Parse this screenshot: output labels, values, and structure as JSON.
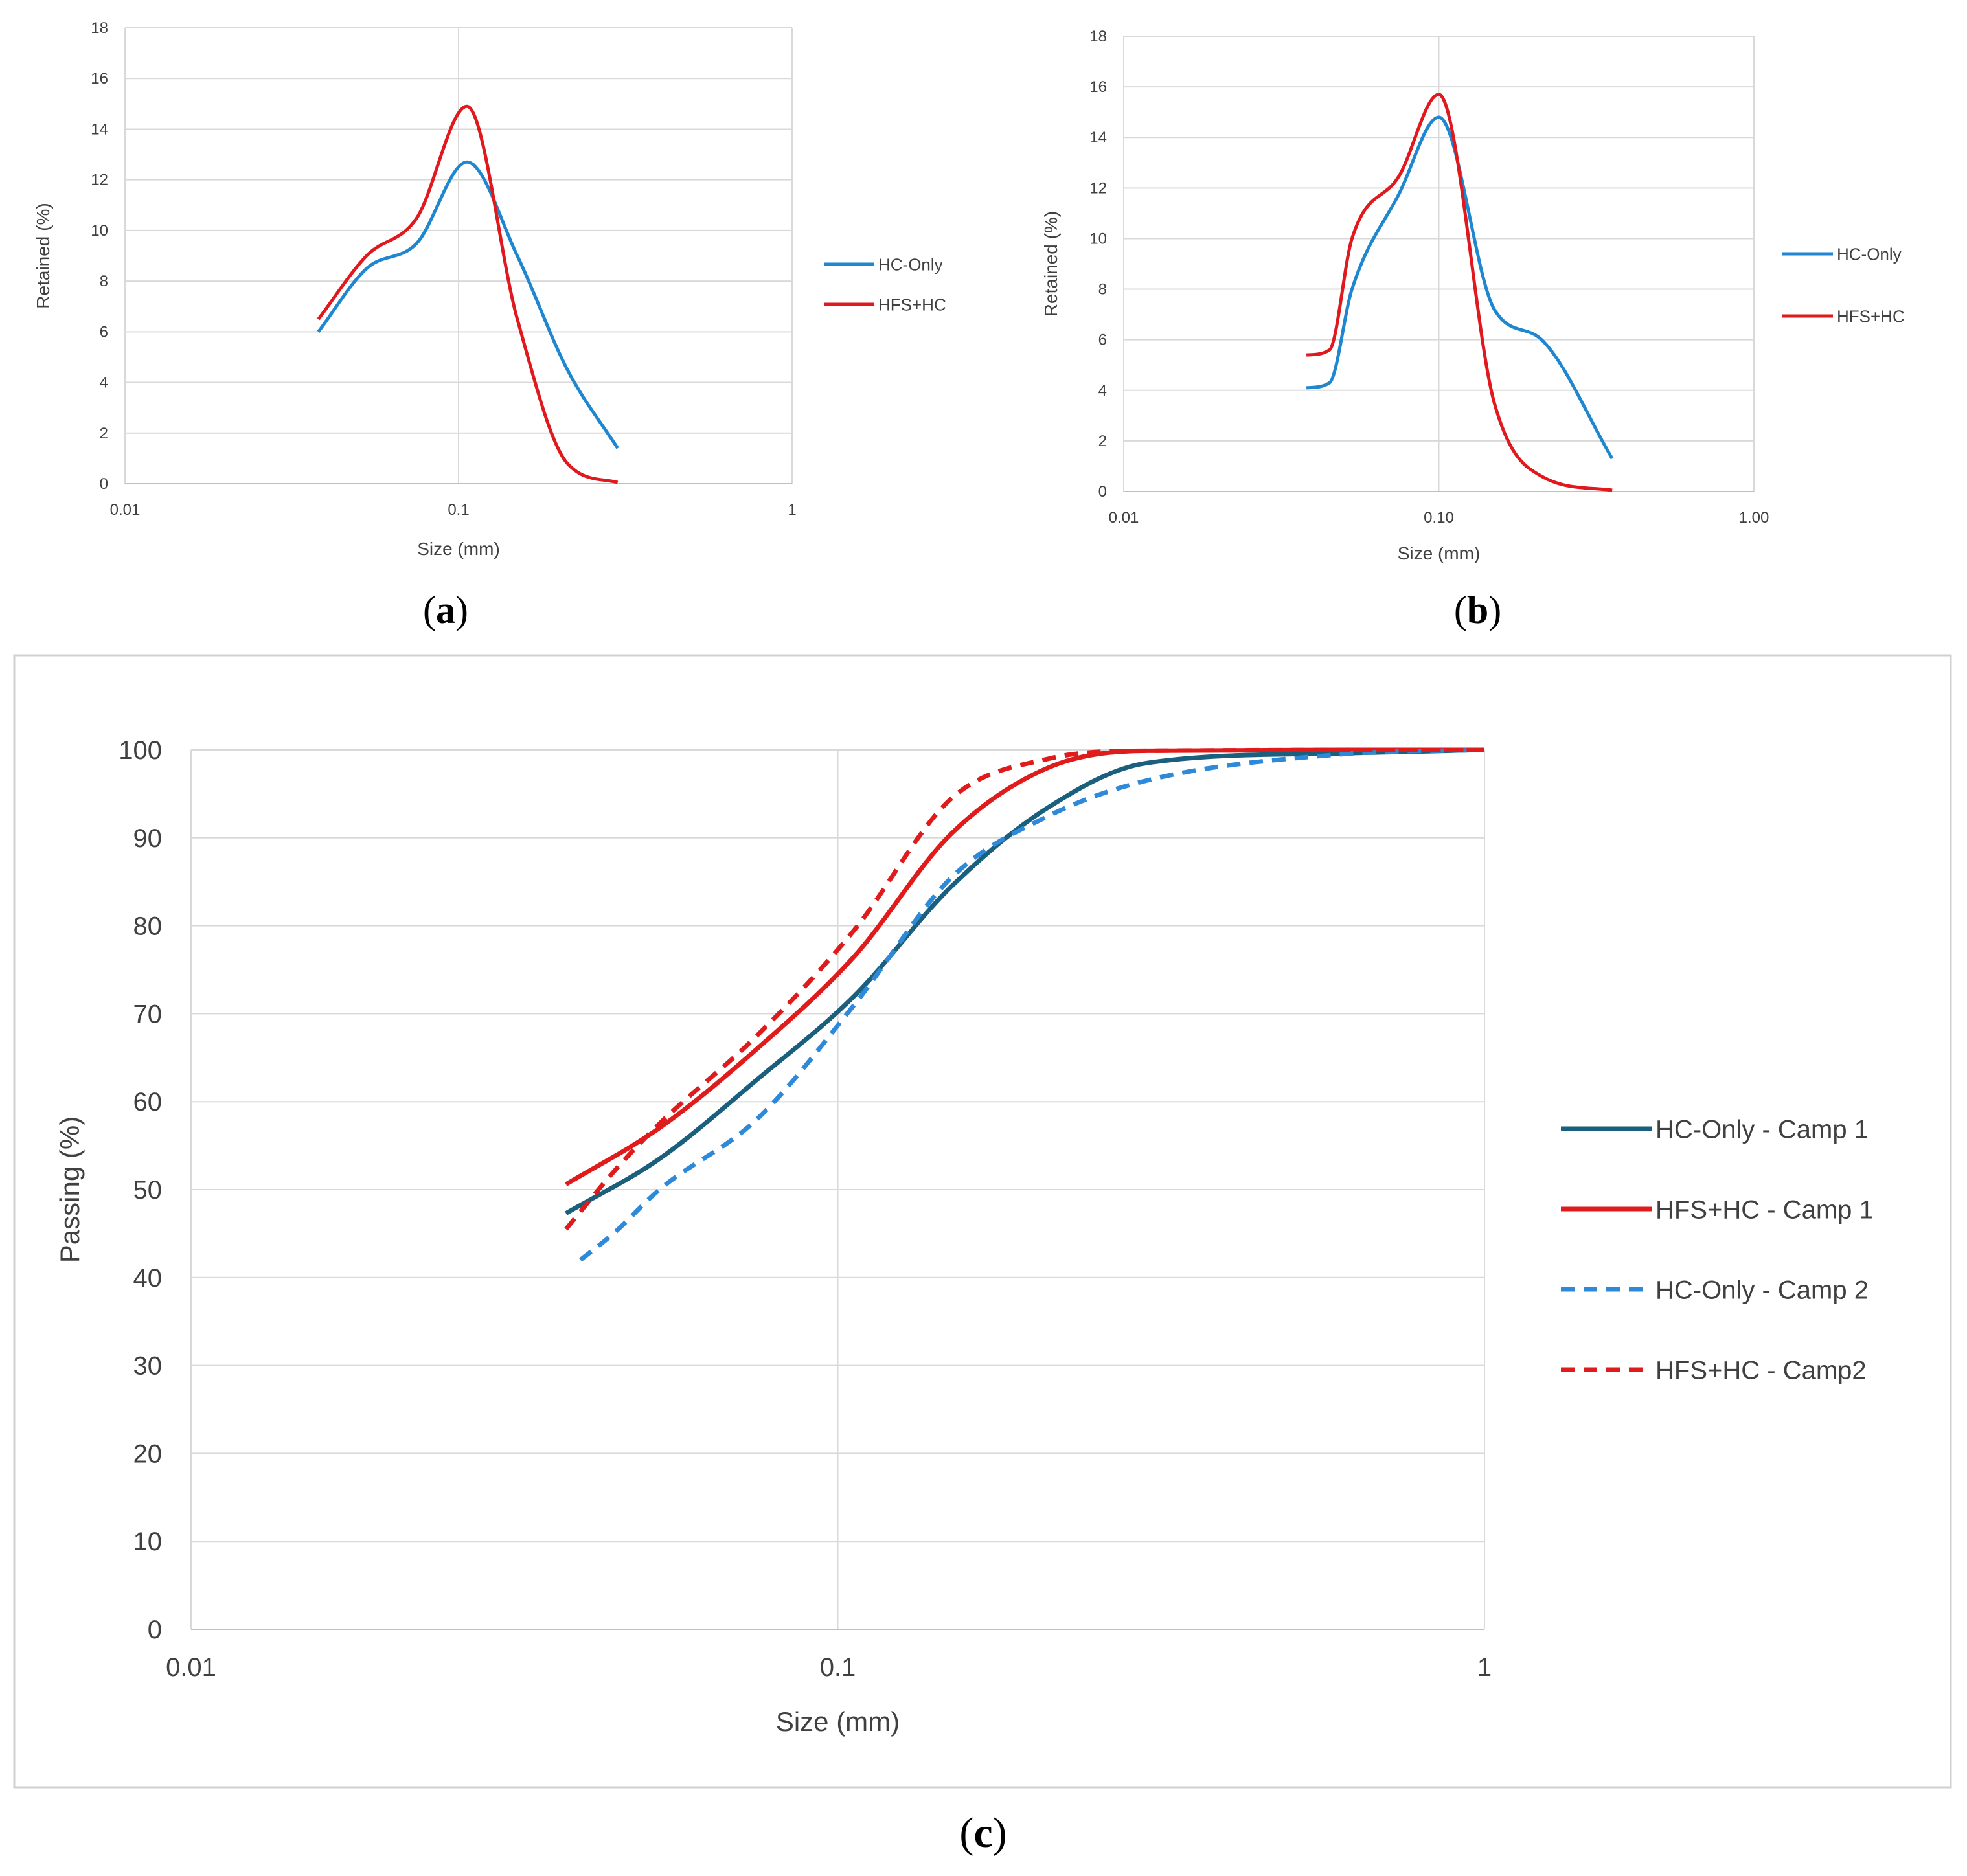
{
  "colors": {
    "hc_only": "#1f86d0",
    "hfs_hc": "#e0191e",
    "hc_camp1": "#1a5f7d",
    "hfs_camp1": "#e01b1b",
    "hc_camp2": "#2e8ad8",
    "hfs_camp2": "#e01b1b",
    "grid": "#d9d9d9",
    "axis_text": "#404040",
    "frame": "#d0d0d0"
  },
  "chart_data": [
    {
      "id": "a",
      "panel_label": "a",
      "type": "line",
      "xscale": "log",
      "xlim": [
        0.01,
        1
      ],
      "ylim": [
        0,
        18
      ],
      "xticks": [
        0.01,
        0.1,
        1
      ],
      "xtick_labels": [
        "0.01",
        "0.1",
        "1"
      ],
      "yticks": [
        0,
        2,
        4,
        6,
        8,
        10,
        12,
        14,
        16,
        18
      ],
      "ytick_labels": [
        "0",
        "2",
        "4",
        "6",
        "8",
        "10",
        "12",
        "14",
        "16",
        "18"
      ],
      "xlabel": "Size (mm)",
      "ylabel": "Retained (%)",
      "legend_position": "right",
      "series": [
        {
          "name": "HC-Only",
          "color_key": "hc_only",
          "dashed": false,
          "x": [
            0.038,
            0.053,
            0.075,
            0.106,
            0.15,
            0.212,
            0.3
          ],
          "y": [
            6.0,
            8.5,
            9.5,
            12.7,
            9.0,
            4.5,
            1.4
          ]
        },
        {
          "name": "HFS+HC",
          "color_key": "hfs_hc",
          "dashed": false,
          "x": [
            0.038,
            0.053,
            0.075,
            0.106,
            0.15,
            0.212,
            0.3
          ],
          "y": [
            6.5,
            9.0,
            10.5,
            14.9,
            6.5,
            0.8,
            0.05
          ]
        }
      ]
    },
    {
      "id": "b",
      "panel_label": "b",
      "type": "line",
      "xscale": "log",
      "xlim": [
        0.01,
        1
      ],
      "ylim": [
        0,
        18
      ],
      "xticks": [
        0.01,
        0.1,
        1
      ],
      "xtick_labels": [
        "0.01",
        "0.10",
        "1.00"
      ],
      "yticks": [
        0,
        2,
        4,
        6,
        8,
        10,
        12,
        14,
        16,
        18
      ],
      "ytick_labels": [
        "0",
        "2",
        "4",
        "6",
        "8",
        "10",
        "12",
        "14",
        "16",
        "18"
      ],
      "xlabel": "Size (mm)",
      "ylabel": "Retained (%)",
      "legend_position": "right",
      "series": [
        {
          "name": "HC-Only",
          "color_key": "hc_only",
          "dashed": false,
          "x": [
            0.038,
            0.045,
            0.053,
            0.075,
            0.1,
            0.15,
            0.212,
            0.355
          ],
          "y": [
            4.1,
            4.3,
            8.0,
            11.8,
            14.8,
            7.2,
            6.0,
            1.3
          ]
        },
        {
          "name": "HFS+HC",
          "color_key": "hfs_hc",
          "dashed": false,
          "x": [
            0.038,
            0.045,
            0.053,
            0.075,
            0.1,
            0.15,
            0.212,
            0.355
          ],
          "y": [
            5.4,
            5.6,
            10.0,
            12.5,
            15.7,
            3.5,
            0.6,
            0.05
          ]
        }
      ]
    },
    {
      "id": "c",
      "panel_label": "c",
      "type": "line",
      "xscale": "log",
      "xlim": [
        0.01,
        1
      ],
      "ylim": [
        0,
        100
      ],
      "xticks": [
        0.01,
        0.1,
        1
      ],
      "xtick_labels": [
        "0.01",
        "0.1",
        "1"
      ],
      "yticks": [
        0,
        10,
        20,
        30,
        40,
        50,
        60,
        70,
        80,
        90,
        100
      ],
      "ytick_labels": [
        "0",
        "10",
        "20",
        "30",
        "40",
        "50",
        "60",
        "70",
        "80",
        "90",
        "100"
      ],
      "xlabel": "Size (mm)",
      "ylabel": "Passing (%)",
      "legend_position": "right",
      "series": [
        {
          "name": "HC-Only - Camp 1",
          "color_key": "hc_camp1",
          "dashed": false,
          "x": [
            0.038,
            0.053,
            0.075,
            0.106,
            0.15,
            0.212,
            0.3,
            0.6,
            1.0
          ],
          "y": [
            47.3,
            53.5,
            62.5,
            72.0,
            84.5,
            93.5,
            98.5,
            99.6,
            100.0
          ]
        },
        {
          "name": "HFS+HC - Camp 1",
          "color_key": "hfs_camp1",
          "dashed": false,
          "x": [
            0.038,
            0.053,
            0.075,
            0.106,
            0.15,
            0.212,
            0.3,
            0.6,
            1.0
          ],
          "y": [
            50.6,
            57.0,
            66.0,
            76.5,
            90.5,
            98.0,
            99.9,
            100.0,
            100.0
          ]
        },
        {
          "name": "HC-Only - Camp 2",
          "color_key": "hc_camp2",
          "dashed": true,
          "x": [
            0.04,
            0.045,
            0.053,
            0.075,
            0.106,
            0.15,
            0.212,
            0.3,
            0.6,
            1.0
          ],
          "y": [
            42.0,
            45.0,
            50.0,
            58.0,
            71.0,
            85.5,
            92.5,
            96.5,
            99.5,
            100.0
          ]
        },
        {
          "name": "HFS+HC - Camp2",
          "color_key": "hfs_camp2",
          "dashed": true,
          "x": [
            0.038,
            0.045,
            0.053,
            0.075,
            0.106,
            0.15,
            0.212,
            0.3,
            1.0
          ],
          "y": [
            45.5,
            52.0,
            57.5,
            67.5,
            79.5,
            94.5,
            99.0,
            99.9,
            100.0
          ]
        }
      ]
    }
  ]
}
